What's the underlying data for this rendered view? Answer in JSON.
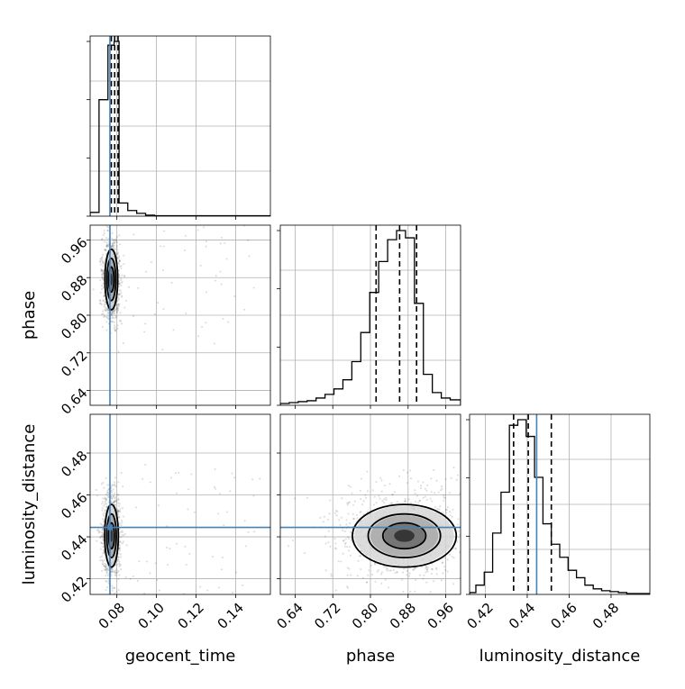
{
  "chart_data": {
    "type": "corner",
    "parameters": [
      "geocent_time",
      "phase",
      "luminosity_distance"
    ],
    "truths": {
      "geocent_time": 0.0765,
      "phase": null,
      "luminosity_distance": 0.4445
    },
    "axes": {
      "geocent_time": {
        "range": [
          0.0665,
          0.1575
        ],
        "ticks": [
          0.08,
          0.1,
          0.12,
          0.14
        ],
        "tick_labels": [
          "0.08",
          "0.10",
          "0.12",
          "0.14"
        ]
      },
      "phase": {
        "range": [
          0.6085,
          0.9915
        ],
        "ticks": [
          0.64,
          0.72,
          0.8,
          0.88,
          0.96
        ],
        "tick_labels": [
          "0.64",
          "0.72",
          "0.80",
          "0.88",
          "0.96"
        ]
      },
      "luminosity_distance": {
        "range": [
          0.4125,
          0.4985
        ],
        "ticks": [
          0.42,
          0.44,
          0.46,
          0.48
        ],
        "tick_labels": [
          "0.42",
          "0.44",
          "0.46",
          "0.48"
        ]
      }
    },
    "marginals": {
      "geocent_time": {
        "bin_edges": [
          0.0665,
          0.071,
          0.0755,
          0.0786,
          0.0811,
          0.0855,
          0.09,
          0.0945,
          0.099,
          0.1575
        ],
        "counts": [
          0.02,
          0.62,
          0.91,
          0.93,
          0.07,
          0.03,
          0.015,
          0.005,
          0.002
        ],
        "quantiles": [
          0.0772,
          0.0789,
          0.0806
        ]
      },
      "phase": {
        "bin_edges": [
          0.6085,
          0.6275,
          0.6465,
          0.6655,
          0.6845,
          0.7035,
          0.7225,
          0.7415,
          0.7605,
          0.7795,
          0.7985,
          0.8175,
          0.8365,
          0.8555,
          0.8745,
          0.8935,
          0.9125,
          0.9315,
          0.9505,
          0.9695,
          0.9915
        ],
        "counts": [
          0.01,
          0.015,
          0.02,
          0.025,
          0.04,
          0.06,
          0.09,
          0.14,
          0.24,
          0.4,
          0.62,
          0.79,
          0.91,
          0.96,
          0.92,
          0.56,
          0.17,
          0.07,
          0.04,
          0.03
        ],
        "quantiles": [
          0.812,
          0.862,
          0.898
        ]
      },
      "luminosity_distance": {
        "bin_edges": [
          0.4125,
          0.4155,
          0.4195,
          0.4235,
          0.4275,
          0.4315,
          0.4355,
          0.4395,
          0.4435,
          0.4475,
          0.4515,
          0.4555,
          0.4595,
          0.4635,
          0.4675,
          0.4715,
          0.4755,
          0.4795,
          0.4835,
          0.4875,
          0.4985
        ],
        "counts": [
          0.01,
          0.05,
          0.12,
          0.33,
          0.55,
          0.91,
          0.94,
          0.85,
          0.63,
          0.38,
          0.27,
          0.2,
          0.13,
          0.09,
          0.05,
          0.03,
          0.02,
          0.015,
          0.01,
          0.005
        ],
        "quantiles": [
          0.4335,
          0.4405,
          0.4515
        ]
      }
    },
    "pairs": [
      {
        "x": "geocent_time",
        "y": "phase",
        "center": [
          0.0772,
          0.876
        ],
        "sigma": [
          0.0014,
          0.028
        ],
        "scatter_span": [
          0.0665,
          0.1575,
          0.6085,
          0.9915
        ]
      },
      {
        "x": "geocent_time",
        "y": "luminosity_distance",
        "center": [
          0.0773,
          0.4405
        ],
        "sigma": [
          0.0015,
          0.0065
        ],
        "scatter_span": [
          0.0665,
          0.1575,
          0.4125,
          0.4985
        ]
      },
      {
        "x": "phase",
        "y": "luminosity_distance",
        "center": [
          0.872,
          0.4405
        ],
        "sigma": [
          0.048,
          0.0065
        ],
        "scatter_span": [
          0.6085,
          0.9915,
          0.4125,
          0.4985
        ]
      }
    ],
    "colors": {
      "truth": "#4682b4",
      "line": "#000000",
      "grid": "#b0b0b0",
      "scatter": "#808080"
    }
  }
}
